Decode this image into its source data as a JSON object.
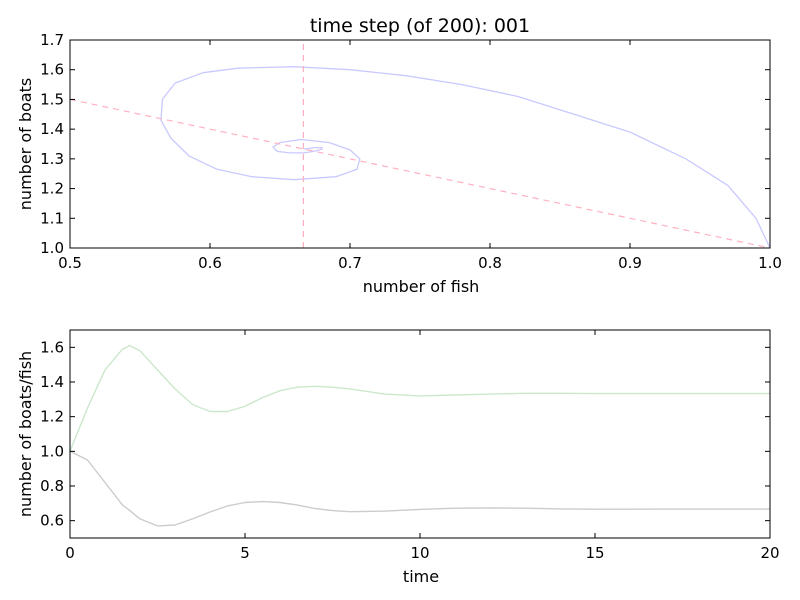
{
  "chart_data": [
    {
      "type": "line",
      "title": "time step (of 200): 001",
      "xlabel": "number of fish",
      "ylabel": "number of boats",
      "xlim": [
        0.5,
        1.0
      ],
      "ylim": [
        1.0,
        1.7
      ],
      "x_ticks": [
        "0.5",
        "0.6",
        "0.7",
        "0.8",
        "0.9",
        "1.0"
      ],
      "y_ticks": [
        "1.0",
        "1.1",
        "1.2",
        "1.3",
        "1.4",
        "1.5",
        "1.6",
        "1.7"
      ],
      "grid": false,
      "colors": {
        "trajectory": "#c9c9ff",
        "nullclines": "#ffb0c0"
      },
      "series": [
        {
          "kind": "trajectory",
          "x": [
            1.0,
            0.99,
            0.97,
            0.94,
            0.9,
            0.86,
            0.82,
            0.78,
            0.74,
            0.7,
            0.66,
            0.62,
            0.595,
            0.575,
            0.566,
            0.565,
            0.572,
            0.585,
            0.605,
            0.63,
            0.66,
            0.69,
            0.705,
            0.707,
            0.7,
            0.685,
            0.665,
            0.65,
            0.645,
            0.648,
            0.657,
            0.667,
            0.675,
            0.68,
            0.68,
            0.675,
            0.667
          ],
          "y": [
            1.0,
            1.1,
            1.21,
            1.3,
            1.39,
            1.45,
            1.51,
            1.55,
            1.58,
            1.6,
            1.61,
            1.605,
            1.59,
            1.555,
            1.5,
            1.43,
            1.37,
            1.31,
            1.265,
            1.24,
            1.23,
            1.24,
            1.265,
            1.3,
            1.33,
            1.355,
            1.365,
            1.355,
            1.34,
            1.325,
            1.32,
            1.32,
            1.326,
            1.333,
            1.338,
            1.338,
            1.333
          ]
        },
        {
          "kind": "nullcline-line",
          "x": [
            0.5,
            1.0
          ],
          "y": [
            1.5,
            1.0
          ]
        },
        {
          "kind": "nullcline-vertical",
          "x": [
            0.6667,
            0.6667
          ],
          "y": [
            1.0,
            1.7
          ]
        }
      ]
    },
    {
      "type": "line",
      "title": "",
      "xlabel": "time",
      "ylabel": "number of boats/fish",
      "xlim": [
        0,
        20
      ],
      "ylim": [
        0.5,
        1.7
      ],
      "x_ticks": [
        "0",
        "5",
        "10",
        "15",
        "20"
      ],
      "y_ticks": [
        "0.6",
        "0.8",
        "1.0",
        "1.2",
        "1.4",
        "1.6"
      ],
      "grid": false,
      "colors": {
        "boats": "#cce8cc",
        "fish": "#cccccc"
      },
      "x": [
        0,
        0.5,
        1,
        1.5,
        1.7,
        2,
        2.5,
        3,
        3.5,
        4,
        4.5,
        5,
        5.5,
        6,
        6.5,
        7,
        7.5,
        8,
        9,
        10,
        11,
        12,
        13,
        14,
        15,
        16,
        17,
        18,
        19,
        20
      ],
      "series": [
        {
          "values": [
            1.0,
            1.25,
            1.47,
            1.59,
            1.61,
            1.58,
            1.47,
            1.36,
            1.27,
            1.23,
            1.23,
            1.26,
            1.31,
            1.35,
            1.37,
            1.375,
            1.37,
            1.36,
            1.33,
            1.32,
            1.325,
            1.33,
            1.335,
            1.335,
            1.333,
            1.333,
            1.333,
            1.333,
            1.333,
            1.333
          ]
        },
        {
          "values": [
            1.0,
            0.95,
            0.82,
            0.69,
            0.66,
            0.61,
            0.57,
            0.575,
            0.61,
            0.65,
            0.685,
            0.705,
            0.71,
            0.705,
            0.69,
            0.67,
            0.658,
            0.652,
            0.655,
            0.665,
            0.672,
            0.673,
            0.672,
            0.668,
            0.666,
            0.666,
            0.667,
            0.667,
            0.667,
            0.667
          ]
        }
      ]
    }
  ]
}
